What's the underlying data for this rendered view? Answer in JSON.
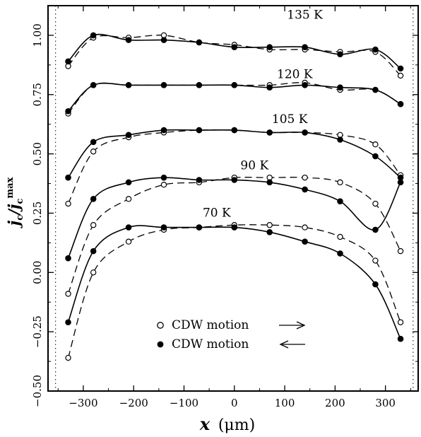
{
  "chart_data": {
    "type": "scatter",
    "xlabel": "x",
    "xunit": "(μm)",
    "ylabel": "j_c / j_c^max",
    "xlim": [
      -370,
      365
    ],
    "ylim": [
      -0.5,
      1.125
    ],
    "xticks": [
      -300,
      -200,
      -100,
      0,
      100,
      200,
      300
    ],
    "xtick_labels": [
      "−300",
      "−200",
      "−100",
      "0",
      "100",
      "200",
      "300"
    ],
    "yticks": [
      -0.5,
      -0.25,
      0.0,
      0.25,
      0.5,
      0.75,
      1.0
    ],
    "ytick_labels": [
      "−0.50",
      "−0.25",
      "0.00",
      "0.25",
      "0.50",
      "0.75",
      "1.00"
    ],
    "vlines_dotted": [
      -355,
      355
    ],
    "x": [
      -330,
      -280,
      -210,
      -140,
      -70,
      0,
      70,
      140,
      210,
      280,
      330
    ],
    "curves": [
      {
        "label": "135 K",
        "open_right": [
          0.87,
          0.99,
          0.99,
          1.0,
          0.97,
          0.96,
          0.94,
          0.94,
          0.93,
          0.93,
          0.83
        ],
        "filled_left": [
          0.89,
          1.0,
          0.98,
          0.98,
          0.97,
          0.95,
          0.95,
          0.95,
          0.92,
          0.94,
          0.86
        ]
      },
      {
        "label": "120 K",
        "open_right": [
          0.67,
          0.79,
          0.79,
          0.79,
          0.79,
          0.79,
          0.79,
          0.8,
          0.77,
          0.77,
          0.71
        ],
        "filled_left": [
          0.68,
          0.79,
          0.79,
          0.79,
          0.79,
          0.79,
          0.78,
          0.79,
          0.78,
          0.77,
          0.71
        ]
      },
      {
        "label": "105 K",
        "open_right": [
          0.29,
          0.51,
          0.57,
          0.59,
          0.6,
          0.6,
          0.59,
          0.59,
          0.58,
          0.54,
          0.41
        ],
        "filled_left": [
          0.4,
          0.55,
          0.58,
          0.6,
          0.6,
          0.6,
          0.59,
          0.59,
          0.56,
          0.49,
          0.4
        ]
      },
      {
        "label": "90 K",
        "open_right": [
          -0.09,
          0.2,
          0.31,
          0.37,
          0.38,
          0.4,
          0.4,
          0.4,
          0.38,
          0.29,
          0.09
        ],
        "filled_left": [
          0.06,
          0.31,
          0.38,
          0.4,
          0.39,
          0.39,
          0.38,
          0.35,
          0.3,
          0.18,
          0.38
        ]
      },
      {
        "label": "70 K",
        "open_right": [
          -0.36,
          0.0,
          0.13,
          0.18,
          0.19,
          0.2,
          0.2,
          0.19,
          0.15,
          0.05,
          -0.21
        ],
        "filled_left": [
          -0.21,
          0.09,
          0.19,
          0.19,
          0.19,
          0.19,
          0.17,
          0.13,
          0.08,
          -0.05,
          -0.28
        ]
      }
    ],
    "legend": {
      "placement": "bottom-center",
      "entries": [
        {
          "marker": "open-circle",
          "text": "CDW motion",
          "arrow": "→"
        },
        {
          "marker": "filled-circle",
          "text": "CDW motion",
          "arrow": "←"
        }
      ]
    }
  }
}
